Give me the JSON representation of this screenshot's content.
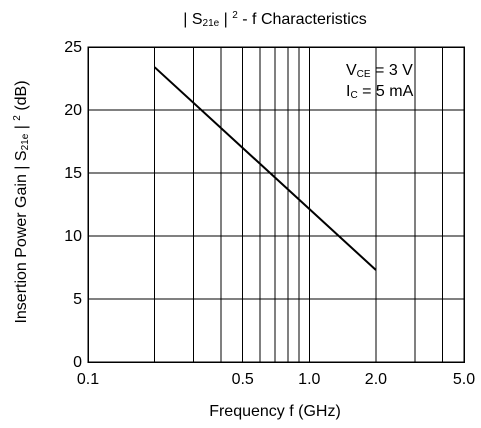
{
  "chart_data": {
    "type": "line",
    "title": {
      "part1": "| S",
      "sub": "21e",
      "part2": " | ",
      "sup": "2",
      "part3": " - f Characteristics"
    },
    "xlabel": "Frequency f (GHz)",
    "ylabel": {
      "part1": "Insertion Power Gain | S",
      "sub": "21e",
      "part2": " | ",
      "sup": "2",
      "part3": " (dB)"
    },
    "x_scale": "log",
    "xlim": [
      0.1,
      5.0
    ],
    "ylim": [
      0,
      25
    ],
    "x_ticks": [
      {
        "value": 0.1,
        "label": "0.1"
      },
      {
        "value": 0.5,
        "label": "0.5"
      },
      {
        "value": 1.0,
        "label": "1.0"
      },
      {
        "value": 2.0,
        "label": "2.0"
      },
      {
        "value": 5.0,
        "label": "5.0"
      }
    ],
    "y_ticks": [
      {
        "value": 0,
        "label": "0"
      },
      {
        "value": 5,
        "label": "5"
      },
      {
        "value": 10,
        "label": "10"
      },
      {
        "value": 15,
        "label": "15"
      },
      {
        "value": 20,
        "label": "20"
      },
      {
        "value": 25,
        "label": "25"
      }
    ],
    "x_gridlines": [
      0.2,
      0.3,
      0.4,
      0.5,
      0.6,
      0.7,
      0.8,
      0.9,
      1.0,
      2.0,
      3.0,
      4.0
    ],
    "y_gridlines": [
      5,
      10,
      15,
      20
    ],
    "grid": true,
    "series": [
      {
        "x": [
          0.2,
          2.0
        ],
        "y": [
          23.4,
          7.3
        ]
      }
    ],
    "annotations": {
      "line1": {
        "prefix": "V",
        "sub": "CE",
        "suffix": " = 3 V"
      },
      "line2": {
        "prefix": "I",
        "sub": "C",
        "suffix": " = 5 mA"
      },
      "placement": "top-right"
    }
  }
}
